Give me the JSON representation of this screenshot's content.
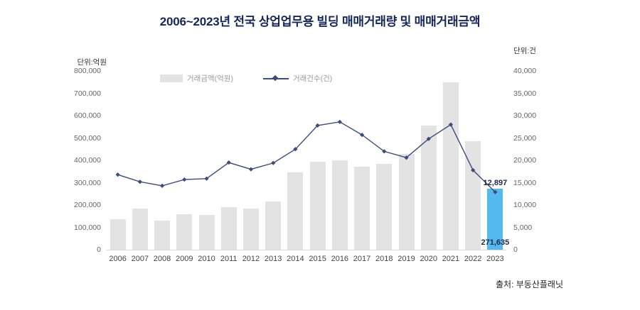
{
  "title": "2006~2023년 전국 상업업무용 빌딩 매매거래량 및 매매거래금액",
  "left_unit": "단위:억원",
  "right_unit": "단위:건",
  "source": "출처: 부동산플래닛",
  "legend": {
    "bar": "거래금액(억원)",
    "line": "거래건수(건)"
  },
  "colors": {
    "bar": "#e3e3e3",
    "bar_highlight": "#54b9ee",
    "line": "#3c4c7c",
    "title": "#14265c",
    "axis_text": "#666666"
  },
  "chart_data": {
    "type": "bar",
    "categories": [
      "2006",
      "2007",
      "2008",
      "2009",
      "2010",
      "2011",
      "2012",
      "2013",
      "2014",
      "2015",
      "2016",
      "2017",
      "2018",
      "2019",
      "2020",
      "2021",
      "2022",
      "2023"
    ],
    "series": [
      {
        "name": "거래금액(억원)",
        "type": "bar",
        "axis": "left",
        "values": [
          135000,
          183000,
          130000,
          160000,
          155000,
          190000,
          185000,
          215000,
          345000,
          395000,
          400000,
          370000,
          385000,
          430000,
          555000,
          750000,
          485000,
          271635
        ]
      },
      {
        "name": "거래건수(건)",
        "type": "line",
        "axis": "right",
        "values": [
          16800,
          15200,
          14300,
          15700,
          15900,
          19500,
          18000,
          19400,
          22500,
          27800,
          28600,
          25700,
          22000,
          20600,
          24800,
          28000,
          17800,
          12897
        ]
      }
    ],
    "left_axis": {
      "min": 0,
      "max": 800000,
      "step": 100000
    },
    "right_axis": {
      "min": 0,
      "max": 40000,
      "step": 5000
    },
    "highlight_index": 17,
    "annotations": [
      {
        "text": "12,897",
        "series": "line",
        "index": 17,
        "placement": "above"
      },
      {
        "text": "271,635",
        "series": "bar",
        "index": 17,
        "placement": "inside-bottom"
      }
    ],
    "grid": false,
    "legend_position": "top-inside"
  }
}
